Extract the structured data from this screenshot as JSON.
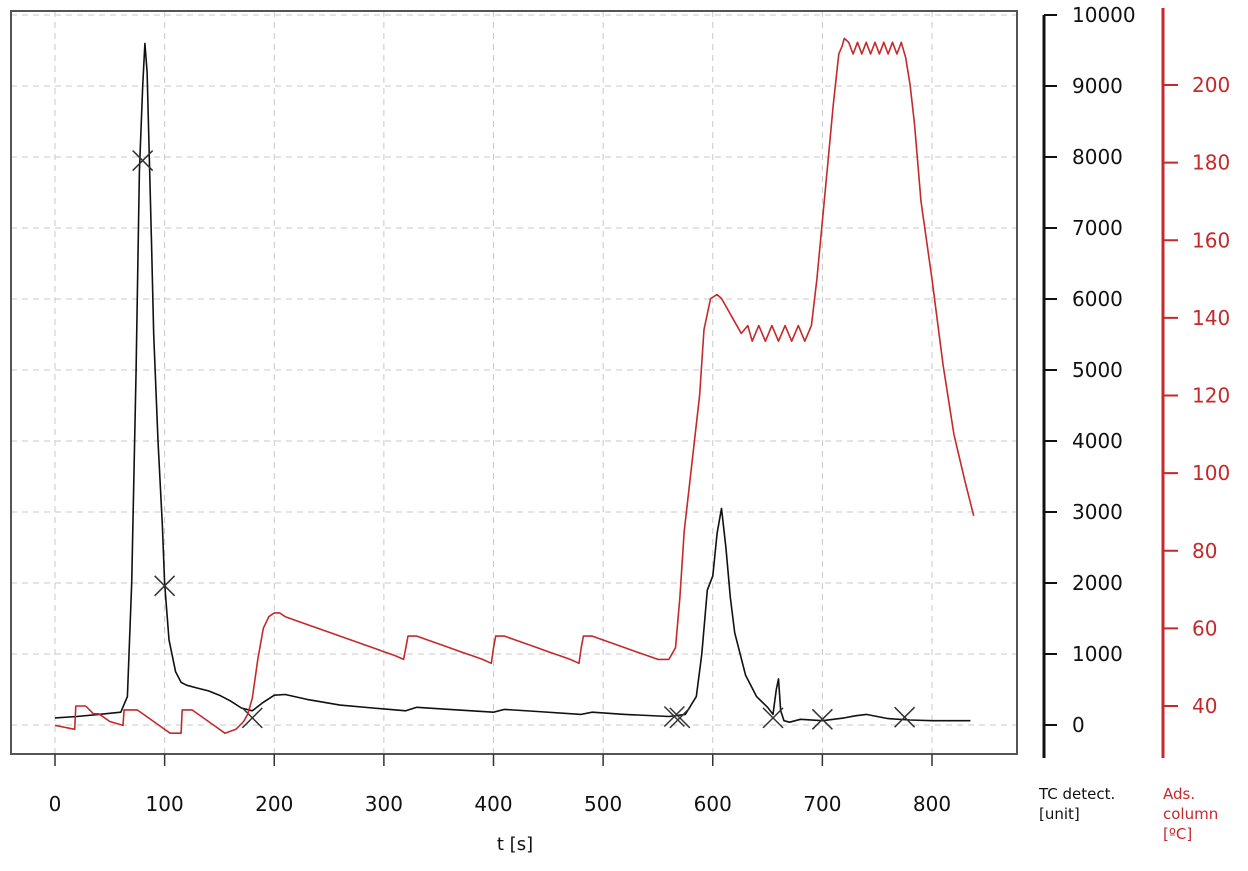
{
  "chart_data": {
    "type": "line",
    "xlabel": "t [s]",
    "xlim": [
      -40,
      900
    ],
    "xticks": [
      0,
      100,
      200,
      300,
      400,
      500,
      600,
      700,
      800
    ],
    "grid": true,
    "grid_style": "dashed",
    "left_axis": {
      "label_lines": [
        "TC detect.",
        "[unit]"
      ],
      "ylim": [
        -460,
        10000
      ],
      "ticks": [
        0,
        1000,
        2000,
        3000,
        4000,
        5000,
        6000,
        7000,
        8000,
        9000,
        10000
      ],
      "color": "#111111"
    },
    "right_axis": {
      "label_lines": [
        "Ads.",
        "column",
        "[ºC]"
      ],
      "ylim": [
        24,
        220
      ],
      "ticks": [
        40,
        60,
        80,
        100,
        120,
        140,
        160,
        180,
        200
      ],
      "color": "#c4292b"
    },
    "series": [
      {
        "axis": "left",
        "color": "#111111",
        "x": [
          0,
          20,
          40,
          60,
          66,
          70,
          74,
          77,
          80,
          82,
          84,
          86,
          88,
          90,
          94,
          98,
          100,
          104,
          110,
          115,
          120,
          130,
          140,
          150,
          160,
          170,
          180,
          190,
          200,
          210,
          230,
          260,
          290,
          320,
          330,
          360,
          400,
          410,
          440,
          480,
          490,
          520,
          560,
          575,
          585,
          590,
          595,
          600,
          604,
          608,
          612,
          616,
          620,
          630,
          640,
          650,
          655,
          658,
          660,
          662,
          665,
          670,
          680,
          700,
          720,
          730,
          740,
          760,
          780,
          800,
          835
        ],
        "y": [
          100,
          120,
          150,
          180,
          400,
          2000,
          5000,
          7800,
          9000,
          9600,
          9200,
          8000,
          6800,
          5500,
          4000,
          2800,
          2000,
          1200,
          750,
          600,
          560,
          520,
          480,
          420,
          340,
          240,
          200,
          320,
          420,
          430,
          360,
          280,
          240,
          200,
          250,
          220,
          180,
          220,
          190,
          150,
          180,
          150,
          120,
          150,
          400,
          1000,
          1900,
          2100,
          2700,
          3050,
          2500,
          1800,
          1300,
          700,
          400,
          250,
          150,
          500,
          650,
          200,
          60,
          40,
          80,
          60,
          100,
          130,
          150,
          90,
          70,
          60,
          60
        ],
        "markers_x": [
          80,
          100,
          180,
          565,
          570,
          655,
          700,
          775
        ],
        "markers_y": [
          7950,
          1960,
          100,
          120,
          100,
          100,
          80,
          110
        ]
      },
      {
        "axis": "right",
        "color": "#c4292b",
        "x": [
          0,
          18,
          19,
          28,
          35,
          40,
          50,
          62,
          63,
          75,
          85,
          95,
          105,
          115,
          116,
          125,
          135,
          145,
          155,
          165,
          172,
          176,
          180,
          185,
          190,
          195,
          200,
          205,
          210,
          220,
          230,
          240,
          250,
          260,
          270,
          280,
          290,
          300,
          310,
          318,
          320,
          322,
          330,
          340,
          350,
          360,
          370,
          380,
          390,
          398,
          400,
          402,
          410,
          420,
          430,
          440,
          450,
          460,
          470,
          478,
          480,
          482,
          490,
          500,
          510,
          520,
          530,
          540,
          550,
          560,
          566,
          570,
          574,
          580,
          588,
          592,
          598,
          604,
          608,
          612,
          616,
          620,
          626,
          632,
          636,
          642,
          648,
          654,
          660,
          666,
          672,
          678,
          684,
          690,
          695,
          700,
          705,
          710,
          715,
          718,
          720,
          724,
          728,
          732,
          736,
          740,
          744,
          748,
          752,
          756,
          760,
          764,
          768,
          772,
          776,
          780,
          784,
          790,
          800,
          810,
          820,
          830,
          838
        ],
        "y": [
          35,
          34,
          40,
          40,
          38,
          38,
          36,
          35,
          39,
          39,
          37,
          35,
          33,
          33,
          39,
          39,
          37,
          35,
          33,
          34,
          36,
          38,
          42,
          52,
          60,
          63,
          64,
          64,
          63,
          62,
          61,
          60,
          59,
          58,
          57,
          56,
          55,
          54,
          53,
          52,
          55,
          58,
          58,
          57,
          56,
          55,
          54,
          53,
          52,
          51,
          55,
          58,
          58,
          57,
          56,
          55,
          54,
          53,
          52,
          51,
          55,
          58,
          58,
          57,
          56,
          55,
          54,
          53,
          52,
          52,
          55,
          68,
          85,
          100,
          120,
          137,
          145,
          146,
          145,
          143,
          141,
          139,
          136,
          138,
          134,
          138,
          134,
          138,
          134,
          138,
          134,
          138,
          134,
          138,
          150,
          165,
          180,
          195,
          208,
          210,
          212,
          211,
          208,
          211,
          208,
          211,
          208,
          211,
          208,
          211,
          208,
          211,
          208,
          211,
          207,
          200,
          190,
          170,
          150,
          128,
          110,
          98,
          89
        ]
      }
    ]
  }
}
